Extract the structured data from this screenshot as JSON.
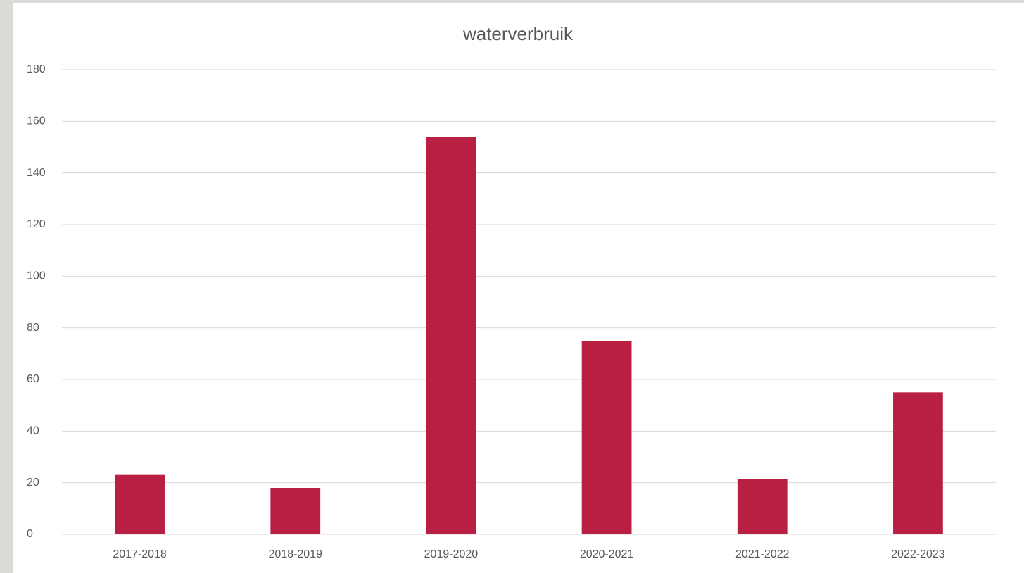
{
  "chart_data": {
    "type": "bar",
    "title": "waterverbruik",
    "categories": [
      "2017-2018",
      "2018-2019",
      "2019-2020",
      "2020-2021",
      "2021-2022",
      "2022-2023"
    ],
    "values": [
      23,
      18,
      154,
      75,
      21.5,
      55
    ],
    "color": "#b91e43",
    "ylim": [
      0,
      180
    ],
    "yticks": [
      0,
      20,
      40,
      60,
      80,
      100,
      120,
      140,
      160,
      180
    ],
    "grid": true
  }
}
